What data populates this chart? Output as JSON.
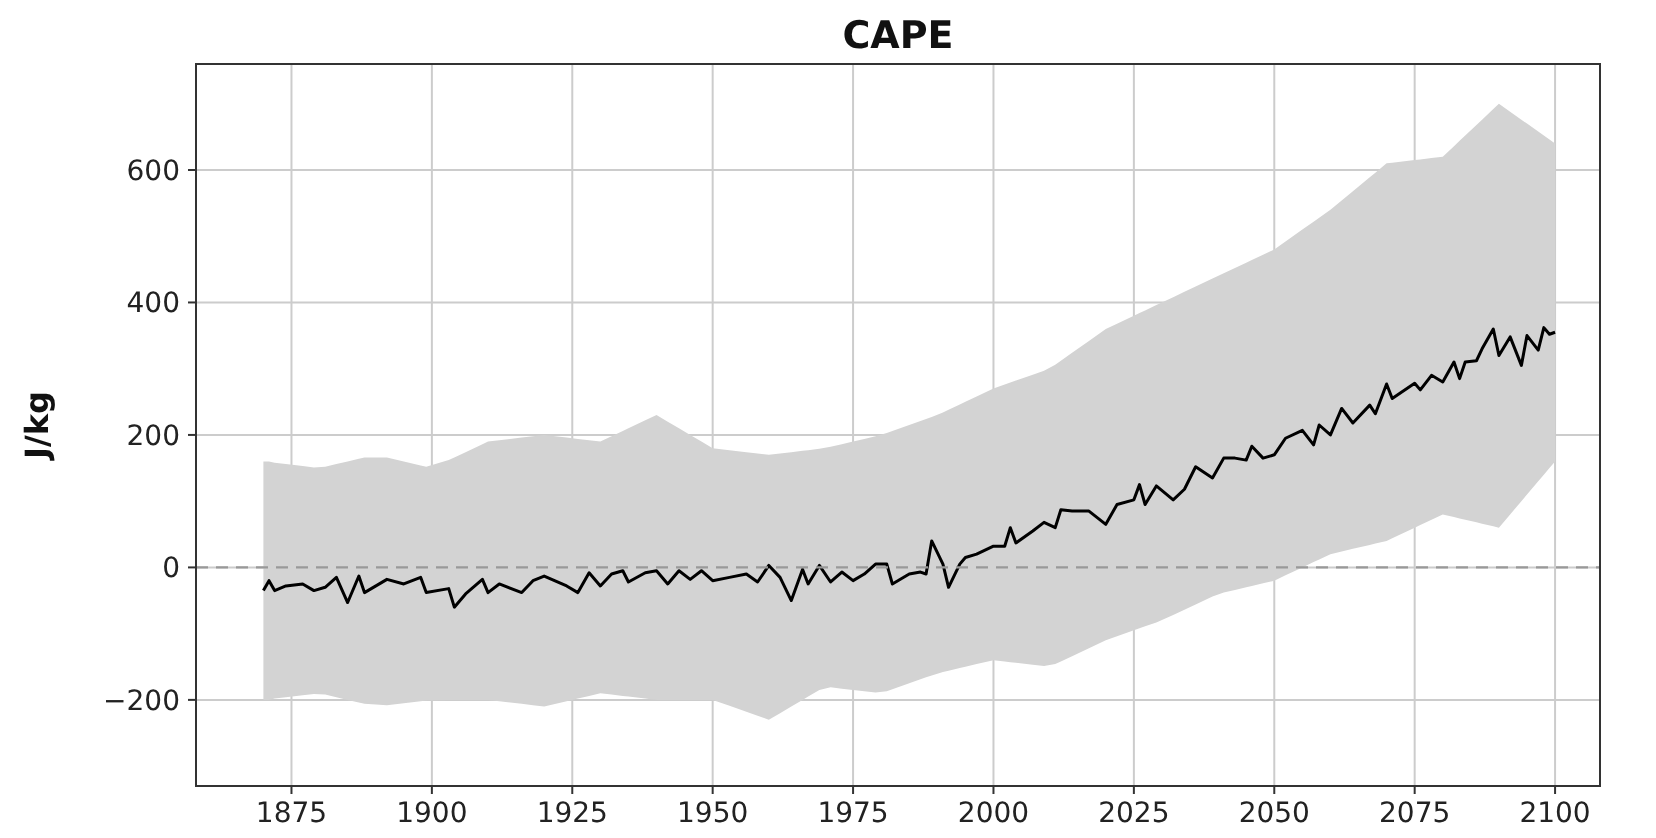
{
  "chart_data": {
    "type": "line",
    "title": "CAPE",
    "ylabel": "J/kg",
    "xlim": [
      1858,
      2108
    ],
    "xticks": [
      1875,
      1900,
      1925,
      1950,
      1975,
      2000,
      2025,
      2050,
      2075,
      2100
    ],
    "ylim": [
      -330,
      760
    ],
    "yticks": [
      -200,
      0,
      200,
      400,
      600
    ],
    "grid": true,
    "ref_lines": [
      {
        "axis": "y",
        "value": 0,
        "color": "#999999",
        "line_style": "dashed"
      }
    ],
    "series": [
      {
        "color": "#000000",
        "x": [
          1870,
          1871,
          1872,
          1874,
          1877,
          1879,
          1881,
          1883,
          1885,
          1887,
          1888,
          1892,
          1895,
          1898,
          1899,
          1903,
          1904,
          1906,
          1909,
          1910,
          1912,
          1916,
          1918,
          1920,
          1924,
          1926,
          1928,
          1930,
          1932,
          1934,
          1935,
          1938,
          1940,
          1942,
          1944,
          1946,
          1948,
          1950,
          1953,
          1956,
          1958,
          1960,
          1962,
          1964,
          1966,
          1967,
          1969,
          1971,
          1973,
          1975,
          1977,
          1979,
          1981,
          1982,
          1985,
          1987,
          1988,
          1989,
          1991,
          1992,
          1994,
          1995,
          1997,
          2000,
          2002,
          2003,
          2004,
          2007,
          2009,
          2011,
          2012,
          2014,
          2017,
          2020,
          2022,
          2025,
          2026,
          2027,
          2029,
          2032,
          2034,
          2036,
          2039,
          2041,
          2043,
          2045,
          2046,
          2048,
          2050,
          2052,
          2055,
          2057,
          2058,
          2060,
          2062,
          2064,
          2067,
          2068,
          2070,
          2071,
          2075,
          2076,
          2078,
          2080,
          2082,
          2083,
          2084,
          2086,
          2087,
          2089,
          2090,
          2092,
          2094,
          2095,
          2097,
          2098,
          2099,
          2100
        ],
        "values": [
          -35,
          -20,
          -35,
          -28,
          -25,
          -35,
          -30,
          -15,
          -53,
          -13,
          -38,
          -18,
          -25,
          -15,
          -38,
          -32,
          -60,
          -40,
          -18,
          -38,
          -25,
          -38,
          -20,
          -13,
          -28,
          -38,
          -8,
          -28,
          -10,
          -5,
          -22,
          -8,
          -5,
          -25,
          -5,
          -18,
          -5,
          -20,
          -15,
          -10,
          -22,
          3,
          -15,
          -50,
          -3,
          -25,
          3,
          -22,
          -7,
          -20,
          -10,
          5,
          5,
          -25,
          -10,
          -7,
          -10,
          40,
          5,
          -30,
          5,
          15,
          20,
          32,
          32,
          60,
          37,
          55,
          68,
          60,
          87,
          85,
          85,
          65,
          95,
          102,
          125,
          95,
          123,
          102,
          118,
          152,
          135,
          165,
          165,
          162,
          183,
          165,
          170,
          195,
          207,
          185,
          215,
          200,
          240,
          218,
          245,
          232,
          277,
          255,
          278,
          268,
          290,
          280,
          310,
          285,
          310,
          312,
          330,
          360,
          320,
          348,
          305,
          350,
          328,
          362,
          352,
          355
        ],
        "upper": [
          160,
          160,
          158,
          156,
          153,
          151,
          152,
          156,
          160,
          164,
          166,
          166,
          160,
          154,
          152,
          162,
          166,
          174,
          186,
          190,
          192,
          196,
          198,
          200,
          196,
          194,
          192,
          190,
          198,
          206,
          210,
          222,
          230,
          220,
          210,
          200,
          190,
          180,
          177,
          174,
          172,
          170,
          172,
          174,
          176,
          177,
          179,
          182,
          186,
          190,
          194,
          198,
          203,
          206,
          215,
          221,
          224,
          227,
          234,
          238,
          246,
          250,
          258,
          270,
          276,
          279,
          282,
          291,
          297,
          306,
          312,
          324,
          342,
          360,
          368,
          380,
          384,
          388,
          396,
          408,
          416,
          424,
          436,
          444,
          452,
          460,
          464,
          472,
          480,
          492,
          510,
          522,
          528,
          540,
          554,
          568,
          589,
          596,
          610,
          611,
          615,
          616,
          618,
          620,
          636,
          644,
          652,
          668,
          676,
          692,
          700,
          688,
          676,
          670,
          658,
          652,
          646,
          640
        ],
        "lower": [
          -200,
          -200,
          -198,
          -196,
          -193,
          -191,
          -192,
          -196,
          -200,
          -204,
          -206,
          -208,
          -205,
          -202,
          -201,
          -200,
          -200,
          -200,
          -200,
          -200,
          -202,
          -206,
          -208,
          -210,
          -202,
          -198,
          -194,
          -190,
          -192,
          -194,
          -195,
          -198,
          -200,
          -200,
          -200,
          -200,
          -200,
          -200,
          -209,
          -218,
          -224,
          -230,
          -220,
          -210,
          -200,
          -195,
          -185,
          -181,
          -183,
          -185,
          -187,
          -189,
          -187,
          -184,
          -175,
          -169,
          -166,
          -163,
          -158,
          -156,
          -152,
          -150,
          -146,
          -140,
          -142,
          -143,
          -144,
          -147,
          -149,
          -146,
          -142,
          -134,
          -122,
          -110,
          -104,
          -95,
          -92,
          -89,
          -83,
          -72,
          -64,
          -56,
          -44,
          -38,
          -34,
          -30,
          -28,
          -24,
          -20,
          -12,
          0,
          8,
          12,
          20,
          24,
          28,
          34,
          36,
          40,
          44,
          60,
          64,
          72,
          80,
          76,
          74,
          72,
          68,
          66,
          62,
          60,
          80,
          100,
          110,
          130,
          140,
          150,
          160
        ]
      }
    ]
  }
}
